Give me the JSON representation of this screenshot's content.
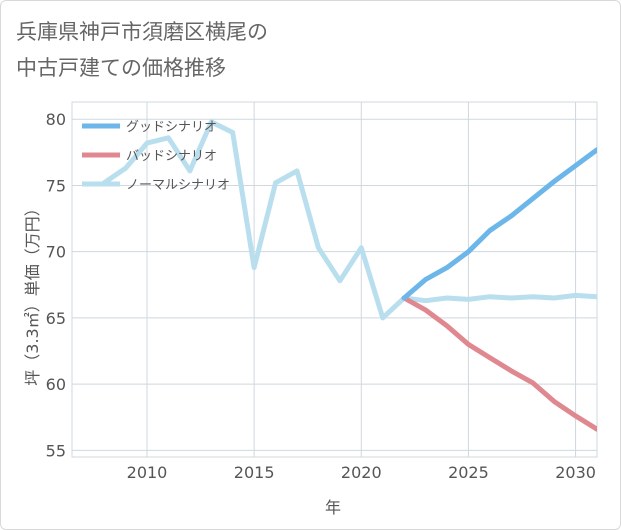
{
  "title_lines": [
    "兵庫県神戸市須磨区横尾の",
    "中古戸建ての価格推移"
  ],
  "chart_data": {
    "type": "line",
    "title": "兵庫県神戸市須磨区横尾の中古戸建ての価格推移",
    "xlabel": "年",
    "ylabel": "坪（3.3㎡）単価（万円）",
    "xlim": [
      2006.5,
      2031
    ],
    "ylim": [
      54.5,
      81.3
    ],
    "xticks": [
      2010,
      2015,
      2020,
      2025,
      2030
    ],
    "yticks": [
      55,
      60,
      65,
      70,
      75,
      80
    ],
    "grid": true,
    "legend_position": "top-left",
    "series": [
      {
        "name": "グッドシナリオ",
        "color": "#6cb6ea",
        "x": [
          2022,
          2023,
          2024,
          2025,
          2026,
          2027,
          2028,
          2029,
          2030,
          2031
        ],
        "values": [
          66.5,
          67.9,
          68.8,
          70.0,
          71.6,
          72.7,
          74.0,
          75.3,
          76.5,
          77.7
        ]
      },
      {
        "name": "バッドシナリオ",
        "color": "#e08890",
        "x": [
          2022,
          2023,
          2024,
          2025,
          2026,
          2027,
          2028,
          2029,
          2030,
          2031
        ],
        "values": [
          66.5,
          65.6,
          64.4,
          63.0,
          62.0,
          61.0,
          60.1,
          58.7,
          57.6,
          56.6
        ]
      },
      {
        "name": "ノーマルシナリオ",
        "color": "#b9dfee",
        "x": [
          2008,
          2009,
          2010,
          2011,
          2012,
          2013,
          2014,
          2015,
          2016,
          2017,
          2018,
          2019,
          2020,
          2021,
          2022,
          2023,
          2024,
          2025,
          2026,
          2027,
          2028,
          2029,
          2030,
          2031
        ],
        "values": [
          75.2,
          76.3,
          78.2,
          78.6,
          76.1,
          79.8,
          79.0,
          68.8,
          75.2,
          76.1,
          70.3,
          67.8,
          70.3,
          65.0,
          66.5,
          66.3,
          66.5,
          66.4,
          66.6,
          66.5,
          66.6,
          66.5,
          66.7,
          66.6
        ]
      }
    ]
  }
}
